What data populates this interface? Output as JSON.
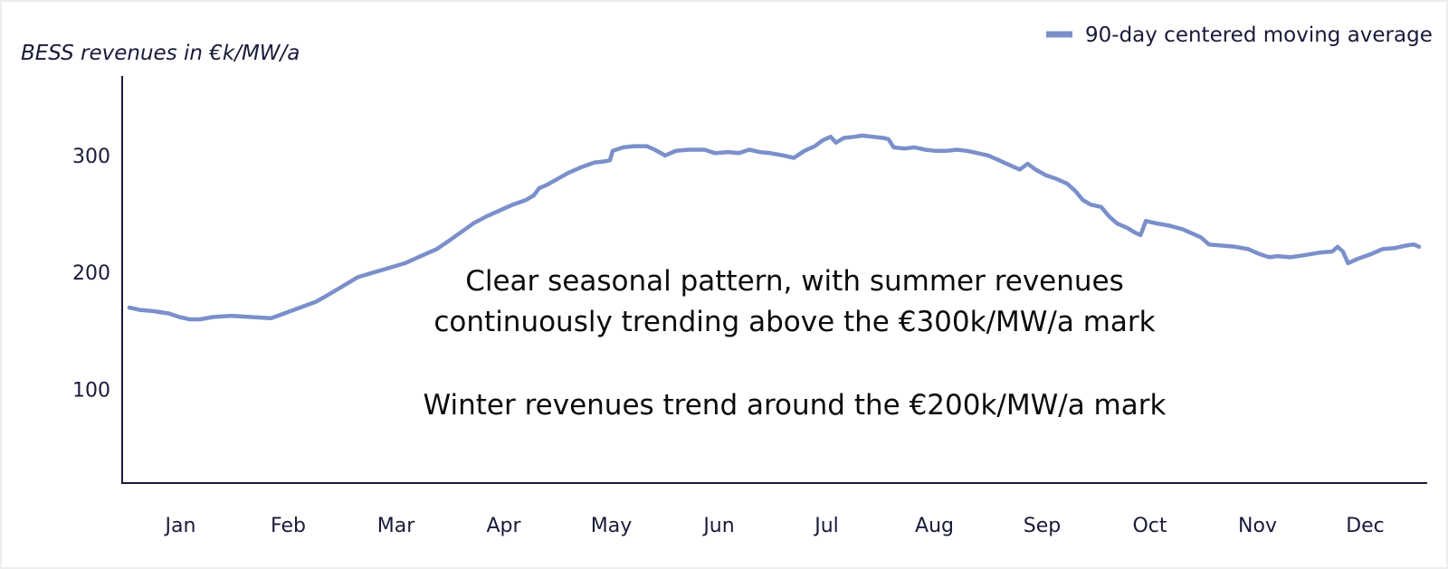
{
  "chart_data": {
    "type": "line",
    "ylabel": "BESS revenues in €k/MW/a",
    "xlabel": "",
    "title": "",
    "categories": [
      "Jan",
      "Feb",
      "Mar",
      "Apr",
      "May",
      "Jun",
      "Jul",
      "Aug",
      "Sep",
      "Oct",
      "Nov",
      "Dec"
    ],
    "yticks": [
      100,
      200,
      300
    ],
    "ylim": [
      20,
      368
    ],
    "grid": false,
    "legend_position": "top-right",
    "series": [
      {
        "name": "90-day centered moving average",
        "color": "#7b8fcb",
        "points": [
          [
            1,
            170
          ],
          [
            5,
            168
          ],
          [
            10,
            167
          ],
          [
            16,
            165
          ],
          [
            20,
            162
          ],
          [
            24,
            160
          ],
          [
            28,
            160
          ],
          [
            33,
            162
          ],
          [
            40,
            163
          ],
          [
            47,
            162
          ],
          [
            55,
            161
          ],
          [
            60,
            165
          ],
          [
            66,
            170
          ],
          [
            72,
            175
          ],
          [
            76,
            180
          ],
          [
            82,
            188
          ],
          [
            88,
            196
          ],
          [
            94,
            200
          ],
          [
            100,
            204
          ],
          [
            106,
            208
          ],
          [
            112,
            214
          ],
          [
            118,
            220
          ],
          [
            122,
            226
          ],
          [
            127,
            234
          ],
          [
            132,
            242
          ],
          [
            137,
            248
          ],
          [
            142,
            253
          ],
          [
            147,
            258
          ],
          [
            152,
            262
          ],
          [
            155,
            266
          ],
          [
            157,
            272
          ],
          [
            160,
            275
          ],
          [
            164,
            280
          ],
          [
            168,
            285
          ],
          [
            173,
            290
          ],
          [
            178,
            294
          ],
          [
            182,
            295
          ],
          [
            184,
            296
          ],
          [
            185,
            304
          ],
          [
            189,
            307
          ],
          [
            193,
            308
          ],
          [
            198,
            308
          ],
          [
            201,
            305
          ],
          [
            205,
            300
          ],
          [
            209,
            304
          ],
          [
            214,
            305
          ],
          [
            220,
            305
          ],
          [
            224,
            302
          ],
          [
            229,
            303
          ],
          [
            233,
            302
          ],
          [
            237,
            305
          ],
          [
            241,
            303
          ],
          [
            245,
            302
          ],
          [
            250,
            300
          ],
          [
            254,
            298
          ],
          [
            258,
            304
          ],
          [
            262,
            308
          ],
          [
            265,
            313
          ],
          [
            268,
            316
          ],
          [
            270,
            311
          ],
          [
            273,
            315
          ],
          [
            277,
            316
          ],
          [
            280,
            317
          ],
          [
            284,
            316
          ],
          [
            288,
            315
          ],
          [
            290,
            314
          ],
          [
            292,
            307
          ],
          [
            296,
            306
          ],
          [
            300,
            307
          ],
          [
            304,
            305
          ],
          [
            308,
            304
          ],
          [
            312,
            304
          ],
          [
            316,
            305
          ],
          [
            320,
            304
          ],
          [
            324,
            302
          ],
          [
            328,
            300
          ],
          [
            332,
            296
          ],
          [
            336,
            292
          ],
          [
            340,
            288
          ],
          [
            343,
            293
          ],
          [
            346,
            288
          ],
          [
            350,
            283
          ],
          [
            354,
            280
          ],
          [
            358,
            276
          ],
          [
            361,
            270
          ],
          [
            364,
            262
          ],
          [
            367,
            258
          ],
          [
            371,
            256
          ],
          [
            374,
            248
          ],
          [
            377,
            242
          ],
          [
            381,
            238
          ],
          [
            384,
            234
          ],
          [
            386,
            232
          ],
          [
            388,
            244
          ],
          [
            392,
            242
          ],
          [
            397,
            240
          ],
          [
            402,
            237
          ],
          [
            405,
            234
          ],
          [
            409,
            230
          ],
          [
            412,
            224
          ],
          [
            417,
            223
          ],
          [
            422,
            222
          ],
          [
            427,
            220
          ],
          [
            431,
            216
          ],
          [
            435,
            213
          ],
          [
            438,
            214
          ],
          [
            443,
            213
          ],
          [
            449,
            215
          ],
          [
            454,
            217
          ],
          [
            459,
            218
          ],
          [
            461,
            222
          ],
          [
            463,
            218
          ],
          [
            465,
            208
          ],
          [
            469,
            212
          ],
          [
            474,
            216
          ],
          [
            478,
            220
          ],
          [
            483,
            221
          ],
          [
            487,
            223
          ],
          [
            490,
            224
          ],
          [
            492,
            222
          ]
        ]
      }
    ],
    "annotations": [
      "Clear seasonal pattern, with summer revenues",
      "continuously trending above the €300k/MW/a mark",
      "Winter revenues trend around the €200k/MW/a mark"
    ]
  }
}
